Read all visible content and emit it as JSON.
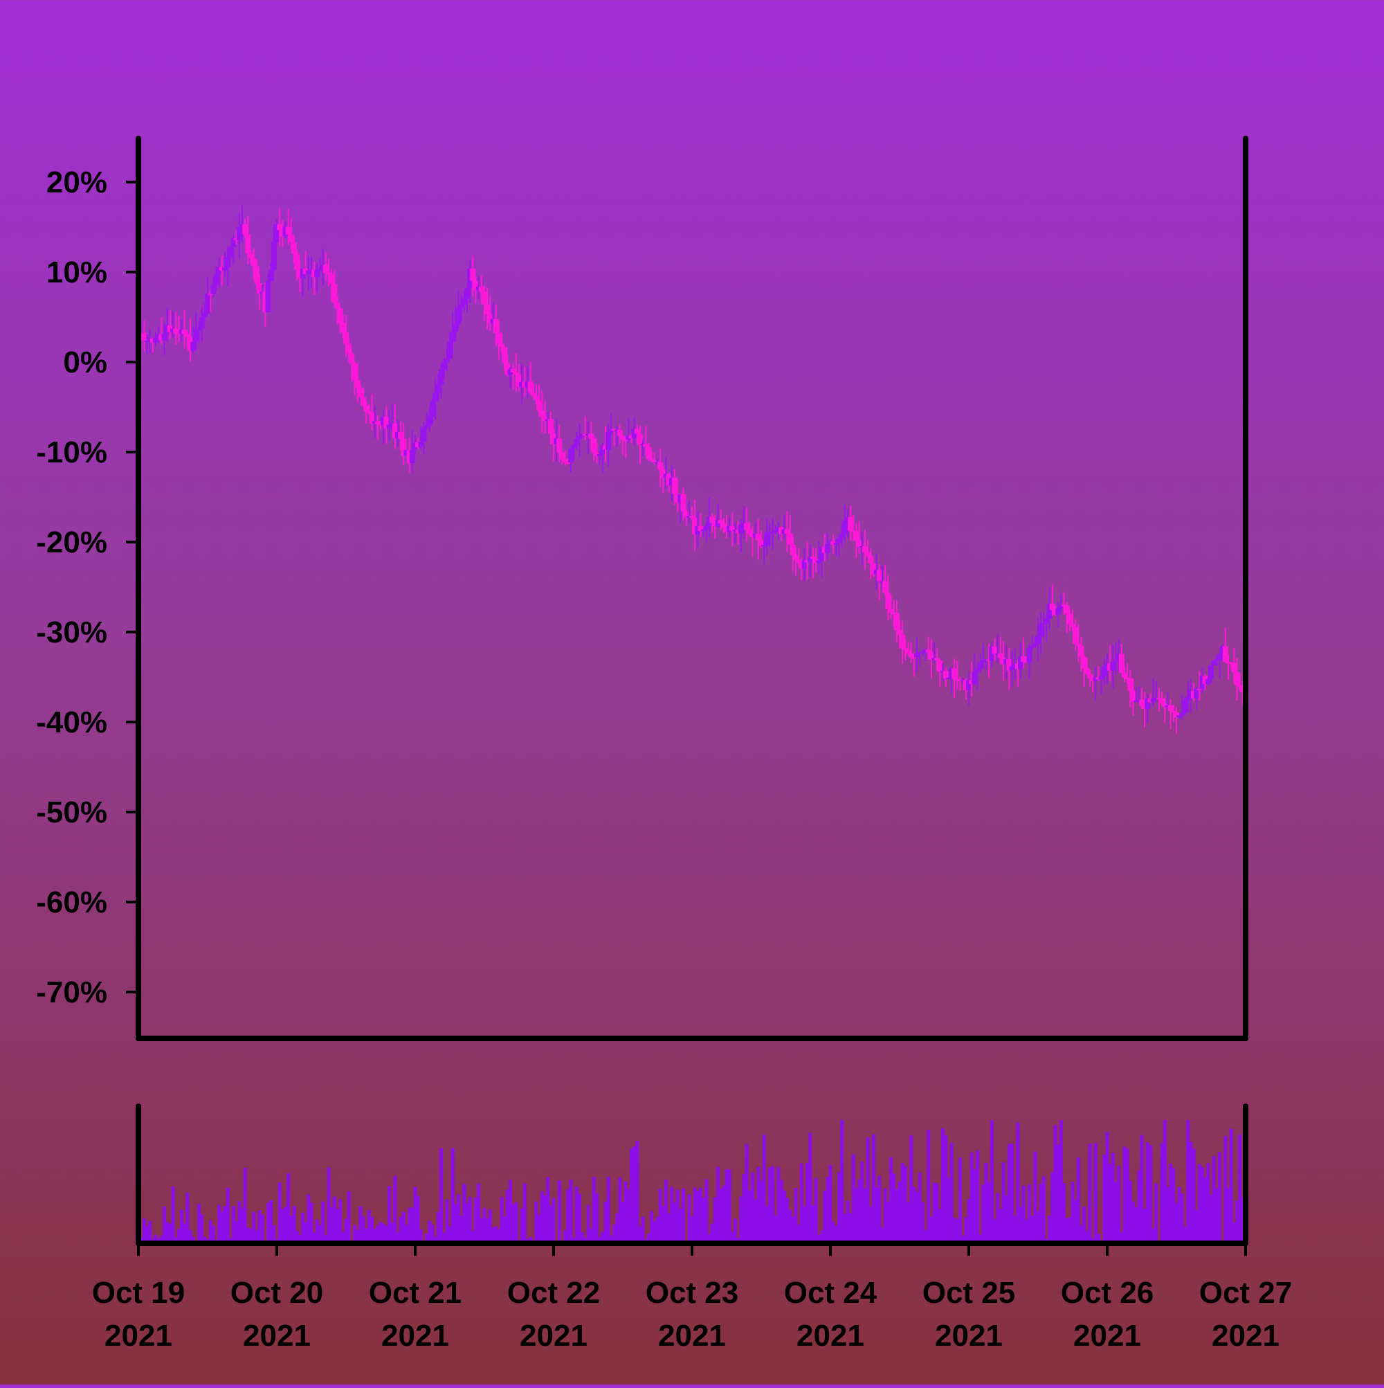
{
  "chart_data": {
    "type": "candlestick",
    "title": "",
    "xlabel": "",
    "ylabel": "",
    "ylim": [
      -75,
      25
    ],
    "yticks": [
      "20%",
      "10%",
      "0%",
      "-10%",
      "-20%",
      "-30%",
      "-40%",
      "-50%",
      "-60%",
      "-70%"
    ],
    "ytick_values": [
      20,
      10,
      0,
      -10,
      -20,
      -30,
      -40,
      -50,
      -60,
      -70
    ],
    "x_range": [
      "2021-10-19",
      "2021-10-27"
    ],
    "xticks": [
      {
        "date": "2021-10-19",
        "line1": "Oct 19",
        "line2": "2021"
      },
      {
        "date": "2021-10-20",
        "line1": "Oct 20",
        "line2": "2021"
      },
      {
        "date": "2021-10-21",
        "line1": "Oct 21",
        "line2": "2021"
      },
      {
        "date": "2021-10-22",
        "line1": "Oct 22",
        "line2": "2021"
      },
      {
        "date": "2021-10-23",
        "line1": "Oct 23",
        "line2": "2021"
      },
      {
        "date": "2021-10-24",
        "line1": "Oct 24",
        "line2": "2021"
      },
      {
        "date": "2021-10-25",
        "line1": "Oct 25",
        "line2": "2021"
      },
      {
        "date": "2021-10-26",
        "line1": "Oct 26",
        "line2": "2021"
      },
      {
        "date": "2021-10-27",
        "line1": "Oct 27",
        "line2": "2021"
      }
    ],
    "close_path": [
      {
        "t": "2021-10-19 00:00",
        "v": 3
      },
      {
        "t": "2021-10-19 03:00",
        "v": 2
      },
      {
        "t": "2021-10-19 06:00",
        "v": 4
      },
      {
        "t": "2021-10-19 09:00",
        "v": 2
      },
      {
        "t": "2021-10-19 14:00",
        "v": 10
      },
      {
        "t": "2021-10-19 18:00",
        "v": 15
      },
      {
        "t": "2021-10-19 22:00",
        "v": 6
      },
      {
        "t": "2021-10-20 00:00",
        "v": 15
      },
      {
        "t": "2021-10-20 02:00",
        "v": 14
      },
      {
        "t": "2021-10-20 04:00",
        "v": 10
      },
      {
        "t": "2021-10-20 06:00",
        "v": 10
      },
      {
        "t": "2021-10-20 09:00",
        "v": 10
      },
      {
        "t": "2021-10-20 14:00",
        "v": -3
      },
      {
        "t": "2021-10-20 16:00",
        "v": -6
      },
      {
        "t": "2021-10-20 20:00",
        "v": -7
      },
      {
        "t": "2021-10-20 23:00",
        "v": -11
      },
      {
        "t": "2021-10-21 02:00",
        "v": -7
      },
      {
        "t": "2021-10-21 06:00",
        "v": 2
      },
      {
        "t": "2021-10-21 09:30",
        "v": 10
      },
      {
        "t": "2021-10-21 13:00",
        "v": 5
      },
      {
        "t": "2021-10-21 16:00",
        "v": -1
      },
      {
        "t": "2021-10-21 20:00",
        "v": -3
      },
      {
        "t": "2021-10-22 02:00",
        "v": -11
      },
      {
        "t": "2021-10-22 05:00",
        "v": -8
      },
      {
        "t": "2021-10-22 08:00",
        "v": -10
      },
      {
        "t": "2021-10-22 10:00",
        "v": -8
      },
      {
        "t": "2021-10-22 14:00",
        "v": -8
      },
      {
        "t": "2021-10-22 17:00",
        "v": -11
      },
      {
        "t": "2021-10-22 20:00",
        "v": -13
      },
      {
        "t": "2021-10-23 01:00",
        "v": -19
      },
      {
        "t": "2021-10-23 03:00",
        "v": -17
      },
      {
        "t": "2021-10-23 06:00",
        "v": -19
      },
      {
        "t": "2021-10-23 09:00",
        "v": -18
      },
      {
        "t": "2021-10-23 12:00",
        "v": -20
      },
      {
        "t": "2021-10-23 15:00",
        "v": -18
      },
      {
        "t": "2021-10-23 19:00",
        "v": -23
      },
      {
        "t": "2021-10-23 23:00",
        "v": -21
      },
      {
        "t": "2021-10-24 03:00",
        "v": -18
      },
      {
        "t": "2021-10-24 05:00",
        "v": -20
      },
      {
        "t": "2021-10-24 09:00",
        "v": -25
      },
      {
        "t": "2021-10-24 13:00",
        "v": -32
      },
      {
        "t": "2021-10-24 15:00",
        "v": -32
      },
      {
        "t": "2021-10-24 19:00",
        "v": -34
      },
      {
        "t": "2021-10-25 00:00",
        "v": -36
      },
      {
        "t": "2021-10-25 04:00",
        "v": -32
      },
      {
        "t": "2021-10-25 08:00",
        "v": -34
      },
      {
        "t": "2021-10-25 11:00",
        "v": -32
      },
      {
        "t": "2021-10-25 14:00",
        "v": -27
      },
      {
        "t": "2021-10-25 17:00",
        "v": -28
      },
      {
        "t": "2021-10-25 21:00",
        "v": -35
      },
      {
        "t": "2021-10-26 00:00",
        "v": -34
      },
      {
        "t": "2021-10-26 02:00",
        "v": -33
      },
      {
        "t": "2021-10-26 05:00",
        "v": -38
      },
      {
        "t": "2021-10-26 09:00",
        "v": -38
      },
      {
        "t": "2021-10-26 12:00",
        "v": -39
      },
      {
        "t": "2021-10-26 16:00",
        "v": -36
      },
      {
        "t": "2021-10-26 20:00",
        "v": -32
      },
      {
        "t": "2021-10-27 00:00",
        "v": -37
      }
    ],
    "colors": {
      "up": "#9b14ee",
      "down": "#ff18d8",
      "volume": "#8c0ee8",
      "axes": "#000000"
    },
    "volume_panel": true,
    "grid": false
  }
}
